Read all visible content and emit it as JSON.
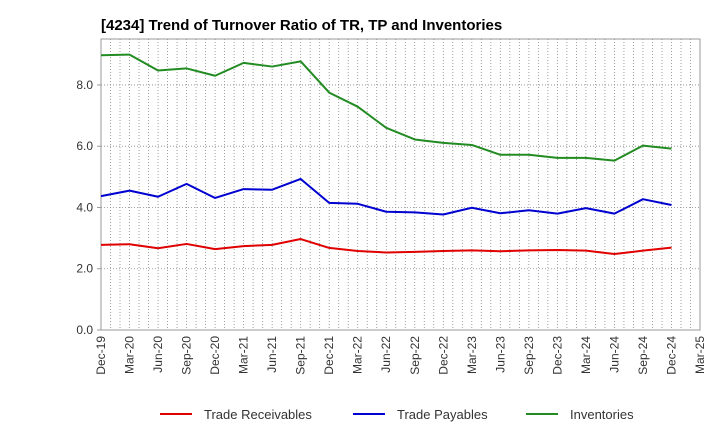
{
  "chart_data": {
    "type": "line",
    "title": "[4234]  Trend of Turnover Ratio of TR, TP and Inventories",
    "xlabel": "",
    "ylabel": "",
    "ylim": [
      0,
      9.5
    ],
    "yticks": [
      "0.0",
      "2.0",
      "4.0",
      "6.0",
      "8.0"
    ],
    "ytick_values": [
      0,
      2,
      4,
      6,
      8
    ],
    "grid": true,
    "legend_position": "bottom",
    "categories": [
      "Dec-19",
      "Mar-20",
      "Jun-20",
      "Sep-20",
      "Dec-20",
      "Mar-21",
      "Jun-21",
      "Sep-21",
      "Dec-21",
      "Mar-22",
      "Jun-22",
      "Sep-22",
      "Dec-22",
      "Mar-23",
      "Jun-23",
      "Sep-23",
      "Dec-23",
      "Mar-24",
      "Jun-24",
      "Sep-24",
      "Dec-24",
      "Mar-25"
    ],
    "series": [
      {
        "name": "Trade Receivables",
        "color": "#e00000",
        "values": [
          2.78,
          2.8,
          2.67,
          2.81,
          2.64,
          2.74,
          2.78,
          2.97,
          2.68,
          2.58,
          2.53,
          2.55,
          2.58,
          2.6,
          2.57,
          2.6,
          2.61,
          2.59,
          2.48,
          2.59,
          2.69,
          null
        ]
      },
      {
        "name": "Trade Payables",
        "color": "#0000d0",
        "values": [
          4.37,
          4.55,
          4.35,
          4.77,
          4.31,
          4.6,
          4.58,
          4.93,
          4.15,
          4.12,
          3.86,
          3.84,
          3.77,
          3.99,
          3.81,
          3.91,
          3.8,
          3.98,
          3.8,
          4.27,
          4.08,
          null
        ]
      },
      {
        "name": "Inventories",
        "color": "#228b22",
        "values": [
          8.97,
          8.99,
          8.47,
          8.54,
          8.3,
          8.72,
          8.6,
          8.77,
          7.75,
          7.29,
          6.6,
          6.22,
          6.11,
          6.04,
          5.72,
          5.72,
          5.62,
          5.62,
          5.53,
          6.02,
          5.92,
          null
        ]
      }
    ]
  }
}
